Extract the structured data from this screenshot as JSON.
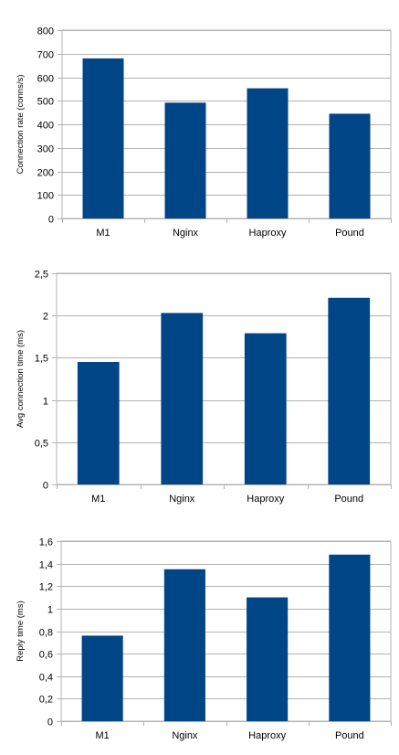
{
  "chart_data": [
    {
      "type": "bar",
      "categories": [
        "M1",
        "Nginx",
        "Haproxy",
        "Pound"
      ],
      "values": [
        680,
        492,
        553,
        445
      ],
      "ylabel": "Connection rate (conns/s)",
      "ylim": [
        0,
        800
      ],
      "yticks": [
        "0",
        "100",
        "200",
        "300",
        "400",
        "500",
        "600",
        "700",
        "800"
      ],
      "grid": true,
      "color": "#004586"
    },
    {
      "type": "bar",
      "categories": [
        "M1",
        "Nginx",
        "Haproxy",
        "Pound"
      ],
      "values": [
        1.45,
        2.03,
        1.79,
        2.21
      ],
      "ylabel": "Avg connection time (ms)",
      "ylim": [
        0,
        2.5
      ],
      "yticks": [
        "0",
        "0,5",
        "1",
        "1,5",
        "2",
        "2,5"
      ],
      "grid": true,
      "color": "#004586"
    },
    {
      "type": "bar",
      "categories": [
        "M1",
        "Nginx",
        "Haproxy",
        "Pound"
      ],
      "values": [
        0.76,
        1.35,
        1.1,
        1.48
      ],
      "ylabel": "Reply time (ms)",
      "ylim": [
        0,
        1.6
      ],
      "yticks": [
        "0",
        "0,2",
        "0,4",
        "0,6",
        "0,8",
        "1",
        "1,2",
        "1,4",
        "1,6"
      ],
      "grid": true,
      "color": "#004586"
    }
  ]
}
